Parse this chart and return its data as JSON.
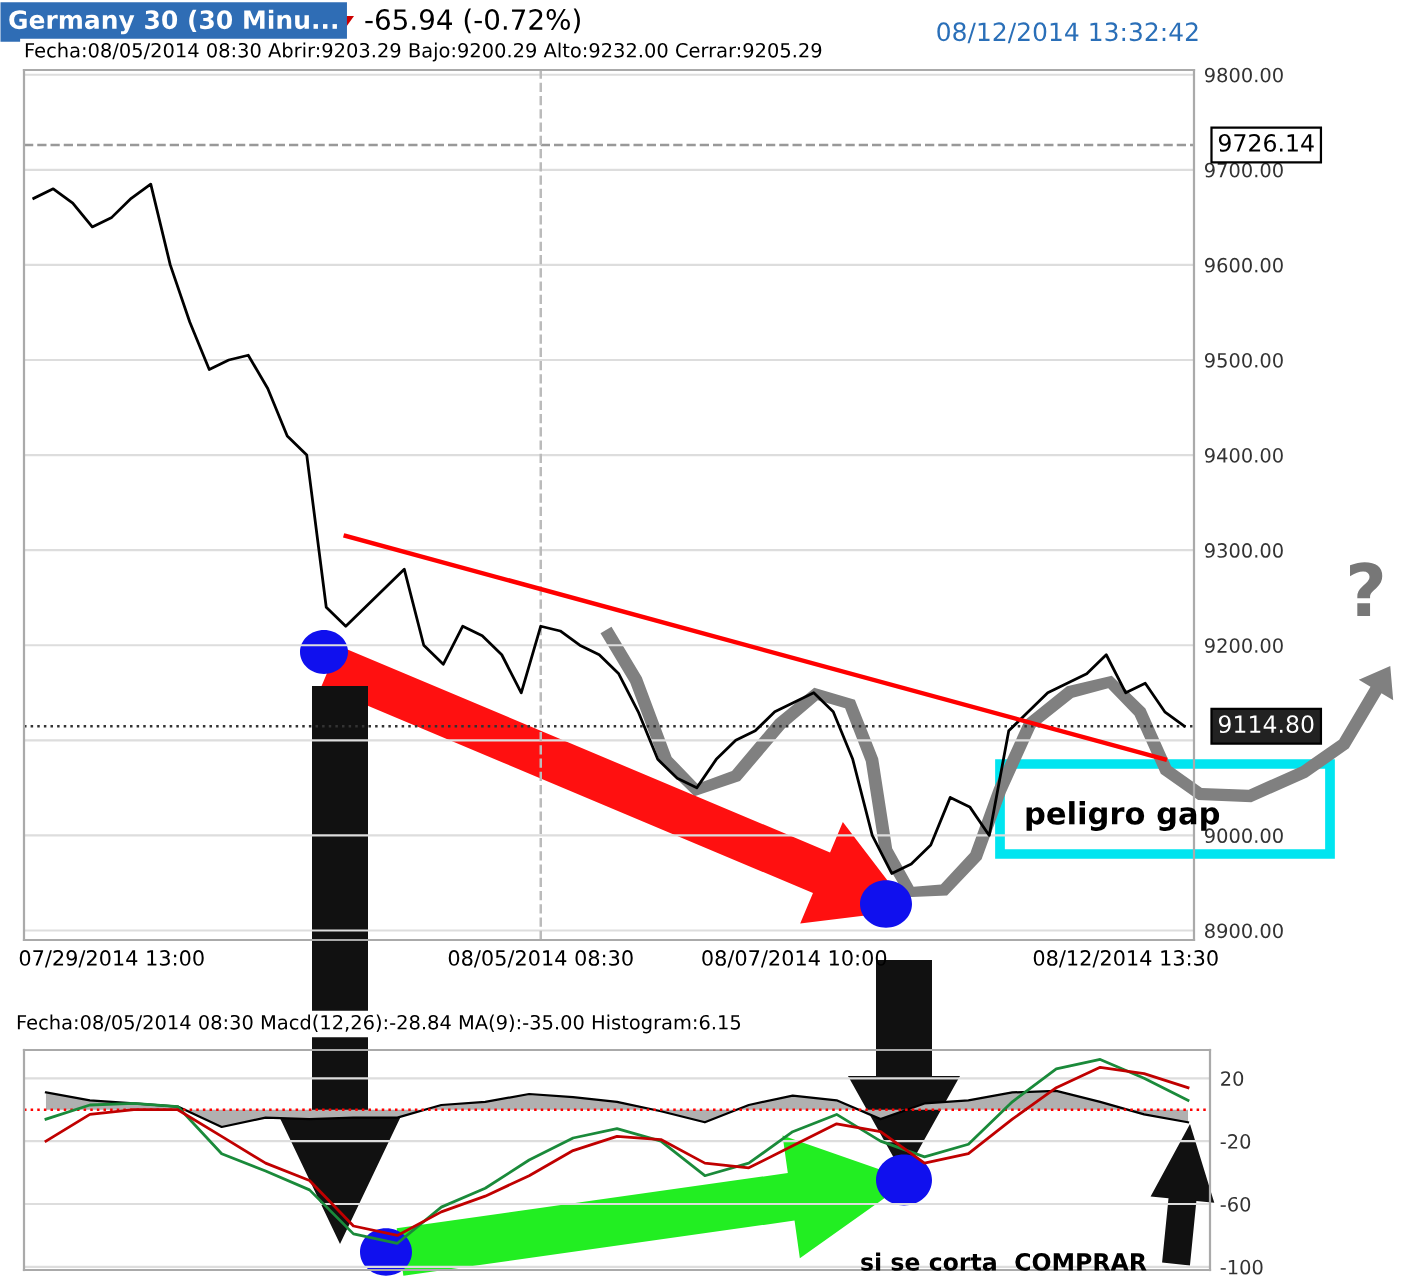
{
  "chart_data": [
    {
      "type": "line",
      "title": "Germany 30 (30 Minu...",
      "subtitle": "Fecha:08/05/2014 08:30 Abrir:9203.29 Bajo:9200.29 Alto:9232.00 Cerrar:9205.29",
      "annotations": [
        "-65.94 (-0.72%)",
        "08/12/2014 13:32:42",
        "peligro gap",
        "?"
      ],
      "categories": [
        null,
        null,
        null,
        null,
        "07/29/2014 13:00",
        null,
        null,
        null,
        null,
        null,
        null,
        null,
        null,
        null,
        null,
        null,
        null,
        null,
        null,
        null,
        null,
        null,
        null,
        null,
        null,
        null,
        "08/05/2014 08:30",
        null,
        null,
        null,
        null,
        null,
        null,
        null,
        null,
        null,
        null,
        null,
        null,
        "08/07/2014 10:00",
        null,
        null,
        null,
        null,
        null,
        null,
        null,
        null,
        null,
        null,
        null,
        null,
        null,
        null,
        null,
        null,
        "08/12/2014 13:30",
        null,
        null,
        null
      ],
      "series": [
        {
          "color": "#000000",
          "values": [
            9670,
            9680,
            9665,
            9640,
            9650,
            9670,
            9685,
            9600,
            9540,
            9490,
            9500,
            9505,
            9470,
            9420,
            9400,
            9240,
            9220,
            9240,
            9260,
            9280,
            9200,
            9180,
            9220,
            9210,
            9190,
            9150,
            9220,
            9215,
            9200,
            9190,
            9170,
            9130,
            9080,
            9060,
            9050,
            9080,
            9100,
            9110,
            9130,
            9140,
            9150,
            9130,
            9080,
            9000,
            8960,
            8970,
            8990,
            9040,
            9030,
            9000,
            9110,
            9130,
            9150,
            9160,
            9170,
            9190,
            9150,
            9160,
            9130,
            9115
          ]
        },
        {
          "color": "#ff0000",
          "values": [
            null,
            null,
            null,
            null,
            null,
            null,
            null,
            null,
            null,
            null,
            null,
            null,
            null,
            null,
            null,
            null,
            9315,
            null,
            null,
            null,
            null,
            null,
            null,
            null,
            null,
            null,
            null,
            null,
            null,
            null,
            null,
            null,
            null,
            null,
            null,
            null,
            null,
            null,
            null,
            null,
            null,
            null,
            null,
            null,
            null,
            null,
            null,
            null,
            null,
            null,
            null,
            null,
            null,
            null,
            null,
            null,
            null,
            null,
            9080,
            null
          ]
        }
      ],
      "ylim": [
        8890,
        9805
      ],
      "yticks": [
        {
          "value": 8900,
          "label": "8900.00"
        },
        {
          "value": 9000,
          "label": "9000.00"
        },
        {
          "value": 9100,
          "label": null
        },
        {
          "value": 9200,
          "label": "9200.00"
        },
        {
          "value": 9300,
          "label": "9300.00"
        },
        {
          "value": 9400,
          "label": "9400.00"
        },
        {
          "value": 9500,
          "label": "9500.00"
        },
        {
          "value": 9600,
          "label": "9600.00"
        },
        {
          "value": 9700,
          "label": "9700.00"
        },
        {
          "value": 9800,
          "label": "9800.00"
        }
      ],
      "ref_lines": [
        {
          "axis": "y",
          "value": 9726.14,
          "label": "9726.14",
          "color": "#999999",
          "line_style": "dashed"
        },
        {
          "axis": "y",
          "value": 9114.8,
          "label": "9114.80",
          "color": "#333333",
          "line_style": "dotted"
        },
        {
          "axis": "x",
          "value": "08/05/2014 08:30",
          "color": "#bbbbbb",
          "line_style": "dashed"
        }
      ],
      "grid": "y",
      "marker": "none",
      "line_style": "solid"
    },
    {
      "type": "line",
      "subtitle": "Fecha:08/05/2014 08:30 Macd(12,26):-28.84 MA(9):-35.00 Histogram:6.15",
      "annotations": [
        "si se corta  COMPRAR"
      ],
      "categories": [
        null,
        null,
        null,
        null,
        null,
        null,
        null,
        null,
        null,
        null,
        null,
        null,
        null,
        null,
        null,
        null,
        null,
        null,
        null,
        null,
        null,
        null,
        null,
        null,
        null,
        null,
        null
      ],
      "series": [
        {
          "type": "area",
          "color": "#b0b0b0",
          "values": [
            11,
            6,
            4,
            2,
            -11,
            -5,
            -6,
            -5,
            -5,
            3,
            5,
            10,
            8,
            5,
            -1,
            -8,
            3,
            9,
            6,
            -6,
            4,
            6,
            11,
            12,
            5,
            -3,
            -8
          ]
        },
        {
          "color": "#1a8a3a",
          "values": [
            -6,
            3,
            4,
            2,
            -28,
            -39,
            -51,
            -79,
            -85,
            -62,
            -50,
            -32,
            -18,
            -12,
            -20,
            -42,
            -34,
            -14,
            -3,
            -20,
            -30,
            -22,
            5,
            26,
            32,
            20,
            6
          ]
        },
        {
          "color": "#c00000",
          "values": [
            -20,
            -3,
            0,
            0,
            -17,
            -34,
            -45,
            -74,
            -80,
            -65,
            -55,
            -42,
            -26,
            -17,
            -19,
            -34,
            -37,
            -23,
            -9,
            -14,
            -34,
            -28,
            -6,
            14,
            27,
            23,
            14
          ]
        }
      ],
      "ylim": [
        -102,
        38
      ],
      "yticks": [
        20,
        -20,
        -60,
        -100
      ],
      "ref_lines": [
        {
          "axis": "y",
          "value": 0,
          "color": "#ff0000",
          "line_style": "dotted"
        }
      ],
      "grid": "y",
      "marker": "none",
      "line_style": "solid",
      "tick_labels": "y"
    }
  ]
}
